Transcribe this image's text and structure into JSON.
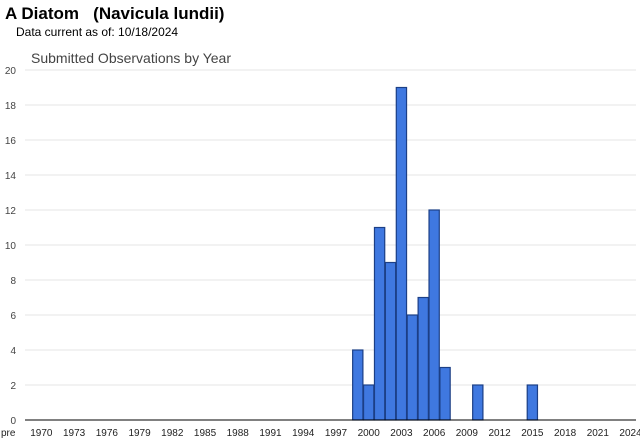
{
  "header": {
    "species_title": "A Diatom   (Navicula lundii)",
    "data_date": "Data current as of: 10/18/2024"
  },
  "chart_data": {
    "type": "bar",
    "title": "Submitted Observations by Year",
    "xlabel": "",
    "ylabel": "",
    "ylim": [
      0,
      20
    ],
    "yticks": [
      0,
      2,
      4,
      6,
      8,
      10,
      12,
      14,
      16,
      18,
      20
    ],
    "grid": true,
    "categories": [
      "pre",
      "1970",
      "1971",
      "1972",
      "1973",
      "1974",
      "1975",
      "1976",
      "1977",
      "1978",
      "1979",
      "1980",
      "1981",
      "1982",
      "1983",
      "1984",
      "1985",
      "1986",
      "1987",
      "1988",
      "1989",
      "1990",
      "1991",
      "1992",
      "1993",
      "1994",
      "1995",
      "1996",
      "1997",
      "1998",
      "1999",
      "2000",
      "2001",
      "2002",
      "2003",
      "2004",
      "2005",
      "2006",
      "2007",
      "2008",
      "2009",
      "2010",
      "2011",
      "2012",
      "2013",
      "2014",
      "2015",
      "2016",
      "2017",
      "2018",
      "2019",
      "2020",
      "2021",
      "2022",
      "2023",
      "2024"
    ],
    "values": [
      0,
      0,
      0,
      0,
      0,
      0,
      0,
      0,
      0,
      0,
      0,
      0,
      0,
      0,
      0,
      0,
      0,
      0,
      0,
      0,
      0,
      0,
      0,
      0,
      0,
      0,
      0,
      0,
      0,
      0,
      4,
      2,
      11,
      9,
      19,
      6,
      7,
      12,
      3,
      0,
      0,
      2,
      0,
      0,
      0,
      0,
      2,
      0,
      0,
      0,
      0,
      0,
      0,
      0,
      0,
      0
    ],
    "xtick_labels": [
      "pre",
      "1970",
      "1973",
      "1976",
      "1979",
      "1982",
      "1985",
      "1988",
      "1991",
      "1994",
      "1997",
      "2000",
      "2003",
      "2006",
      "2009",
      "2012",
      "2015",
      "2018",
      "2021",
      "2024"
    ],
    "colors": {
      "bar_fill": "#3f78e0",
      "bar_stroke": "#1c3f86",
      "grid": "#e6e6e6",
      "axis": "#000000",
      "text": "#444444"
    }
  }
}
